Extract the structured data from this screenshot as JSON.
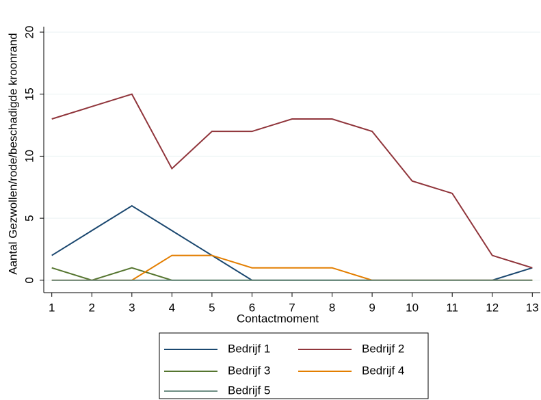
{
  "chart_data": {
    "type": "line",
    "x_label": "Contactmoment",
    "y_label": "Aantal Gezwollen/rode/beschadigde kroonrand",
    "x": [
      1,
      2,
      3,
      4,
      5,
      6,
      7,
      8,
      9,
      10,
      11,
      12,
      13
    ],
    "series": [
      {
        "name": "Bedrijf 1",
        "color": "#1a476f",
        "values": [
          2,
          4,
          6,
          4,
          2,
          0,
          0,
          0,
          0,
          0,
          0,
          0,
          1
        ]
      },
      {
        "name": "Bedrijf 2",
        "color": "#90353b",
        "values": [
          13,
          14,
          15,
          9,
          12,
          12,
          13,
          13,
          12,
          8,
          7,
          2,
          1
        ]
      },
      {
        "name": "Bedrijf 3",
        "color": "#55752f",
        "values": [
          1,
          0,
          1,
          0,
          0,
          0,
          0,
          0,
          0,
          0,
          0,
          0,
          0
        ]
      },
      {
        "name": "Bedrijf 4",
        "color": "#e37e00",
        "values": [
          0,
          0,
          0,
          2,
          2,
          1,
          1,
          1,
          0,
          0,
          0,
          0,
          0
        ]
      },
      {
        "name": "Bedrijf 5",
        "color": "#6e8e84",
        "values": [
          0,
          0,
          0,
          0,
          0,
          0,
          0,
          0,
          0,
          0,
          0,
          0,
          0
        ]
      }
    ],
    "xlim": [
      0.8,
      13.2
    ],
    "xticks": [
      1,
      2,
      3,
      4,
      5,
      6,
      7,
      8,
      9,
      10,
      11,
      12,
      13
    ],
    "ylim": [
      -1,
      20
    ],
    "yticks": [
      0,
      5,
      10,
      15,
      20
    ],
    "grid": true,
    "legend": "bottom"
  }
}
